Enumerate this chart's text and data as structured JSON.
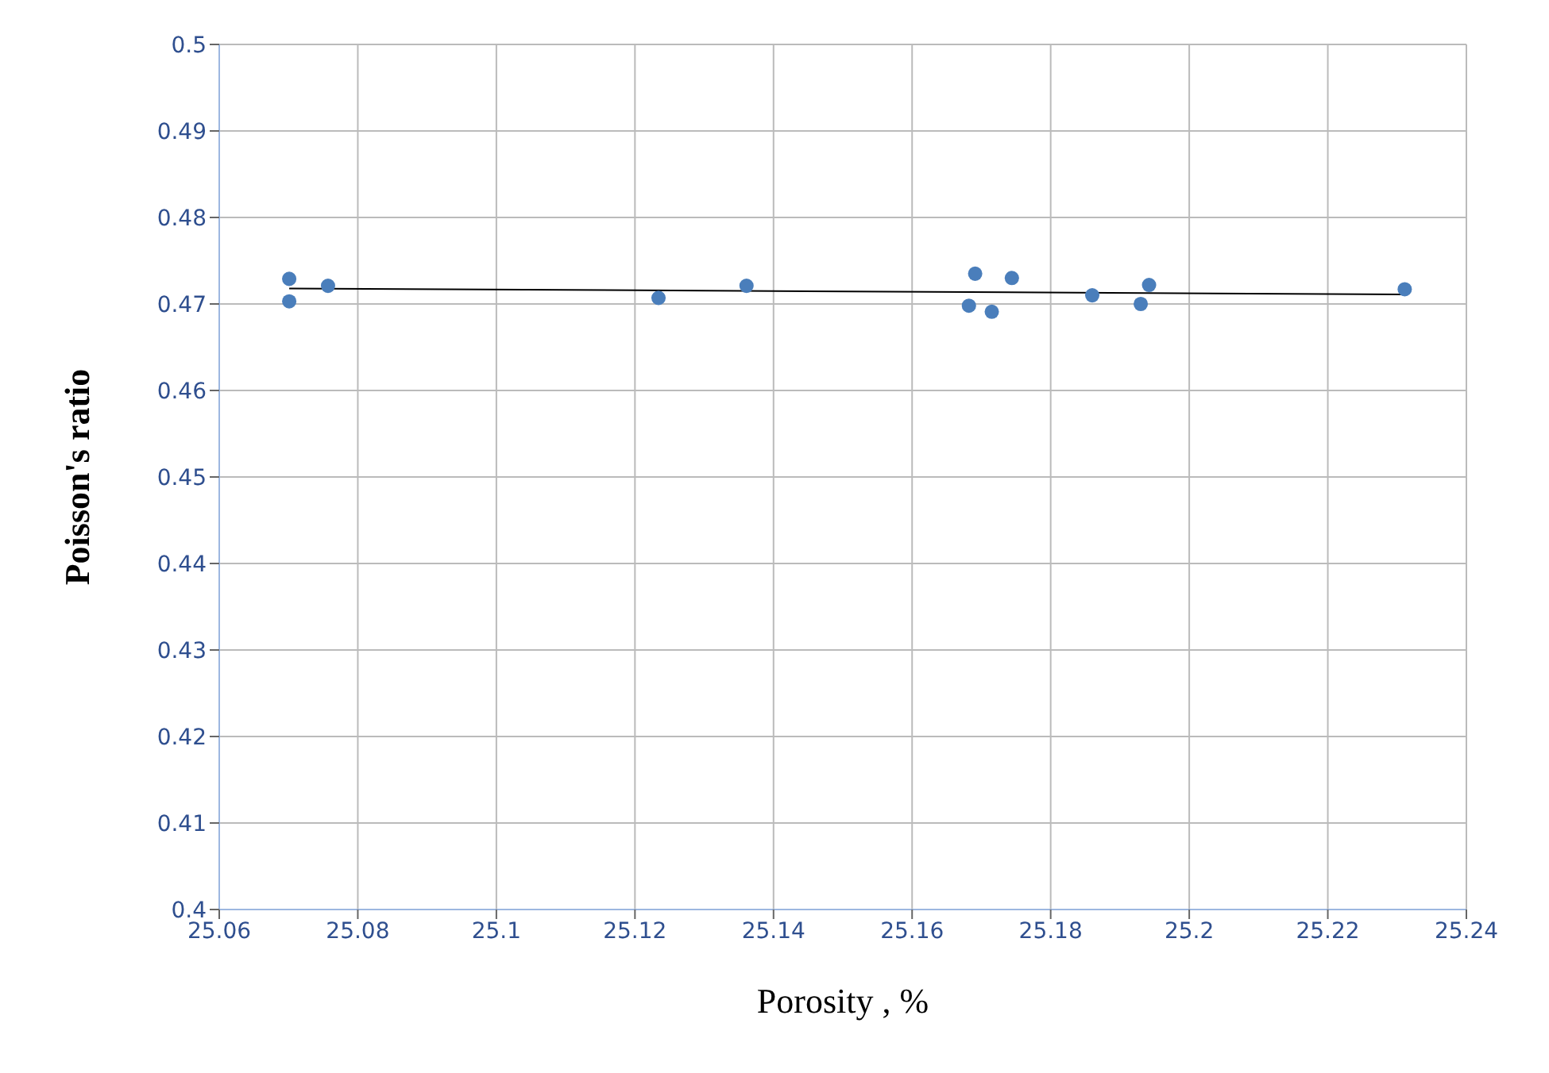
{
  "chart_data": {
    "type": "scatter",
    "xlabel": "Porosity , %",
    "ylabel": "Poisson's ratio",
    "xlim": [
      25.06,
      25.24
    ],
    "xticks": [
      25.06,
      25.08,
      25.1,
      25.12,
      25.14,
      25.16,
      25.18,
      25.2,
      25.22,
      25.24
    ],
    "ylim": [
      0.4,
      0.5
    ],
    "yticks": [
      0.4,
      0.41,
      0.42,
      0.43,
      0.44,
      0.45,
      0.46,
      0.47,
      0.48,
      0.49,
      0.5
    ],
    "grid": true,
    "series": [
      {
        "marker": "circle",
        "color": "#4a7ebb",
        "x": [
          25.0701,
          25.0701,
          25.0757,
          25.1234,
          25.1361,
          25.1682,
          25.1691,
          25.1715,
          25.1744,
          25.186,
          25.193,
          25.1942,
          25.2311
        ],
        "values": [
          0.4729,
          0.4703,
          0.4721,
          0.4707,
          0.4721,
          0.4698,
          0.4735,
          0.4691,
          0.473,
          0.471,
          0.47,
          0.4722,
          0.4717
        ]
      },
      {
        "type": "line",
        "marker": "none",
        "color": "#000000",
        "x": [
          25.0701,
          25.2311
        ],
        "values": [
          0.4718,
          0.4711
        ]
      }
    ]
  }
}
